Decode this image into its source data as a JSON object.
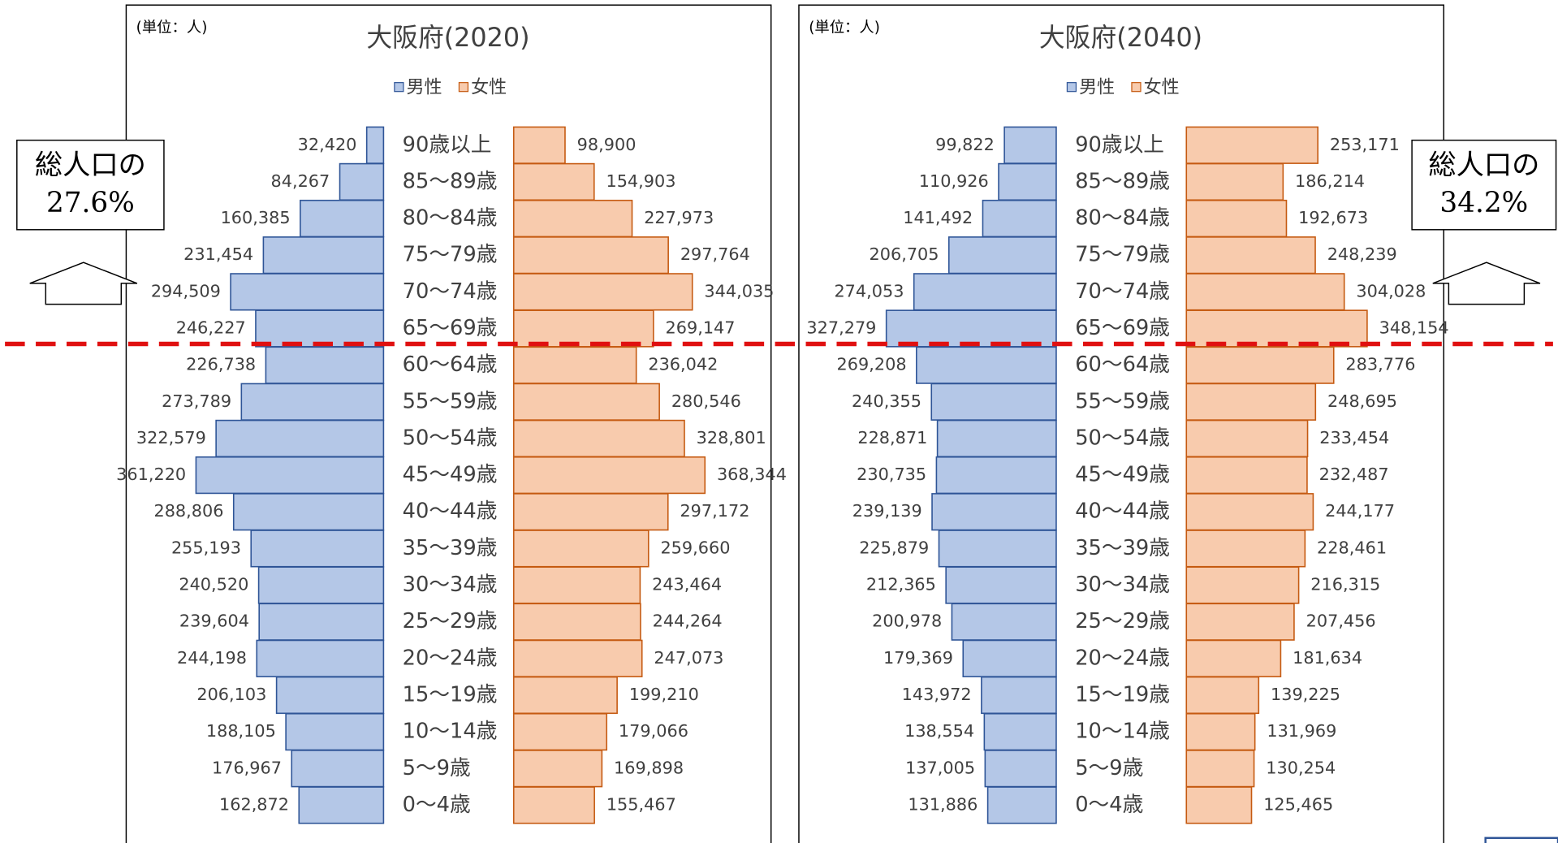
{
  "chart_data": [
    {
      "type": "pyramid",
      "title": "大阪府(2020)",
      "unit": "(単位：人)",
      "annotation": [
        "総人口の",
        "27.6%"
      ],
      "categories": [
        "90歳以上",
        "85～89歳",
        "80～84歳",
        "75～79歳",
        "70～74歳",
        "65～69歳",
        "60～64歳",
        "55～59歳",
        "50～54歳",
        "45～49歳",
        "40～44歳",
        "35～39歳",
        "30～34歳",
        "25～29歳",
        "20～24歳",
        "15～19歳",
        "10～14歳",
        "5～9歳",
        "0～4歳"
      ],
      "xlim": [
        0,
        400000
      ],
      "series": [
        {
          "name": "男性",
          "color": "#b4c7e7",
          "edge": "#2f5597",
          "values": [
            32420,
            84267,
            160385,
            231454,
            294509,
            246227,
            226738,
            273789,
            322579,
            361220,
            288806,
            255193,
            240520,
            239604,
            244198,
            206103,
            188105,
            176967,
            162872
          ],
          "value_labels": [
            "32,420",
            "84,267",
            "160,385",
            "231,454",
            "294,509",
            "246,227",
            "226,738",
            "273,789",
            "322,579",
            "361,220",
            "288,806",
            "255,193",
            "240,520",
            "239,604",
            "244,198",
            "206,103",
            "188,105",
            "176,967",
            "162,872"
          ]
        },
        {
          "name": "女性",
          "color": "#f8cbad",
          "edge": "#c55a11",
          "values": [
            98900,
            154903,
            227973,
            297764,
            344035,
            269147,
            236042,
            280546,
            328801,
            368344,
            297172,
            259660,
            243464,
            244264,
            247073,
            199210,
            179066,
            169898,
            155467
          ],
          "value_labels": [
            "98,900",
            "154,903",
            "227,973",
            "297,764",
            "344,035",
            "269,147",
            "236,042",
            "280,546",
            "328,801",
            "368,344",
            "297,172",
            "259,660",
            "243,464",
            "244,264",
            "247,073",
            "199,210",
            "179,066",
            "169,898",
            "155,467"
          ]
        }
      ]
    },
    {
      "type": "pyramid",
      "title": "大阪府(2040)",
      "unit": "(単位：人)",
      "annotation": [
        "総人口の",
        "34.2%"
      ],
      "categories": [
        "90歳以上",
        "85～89歳",
        "80～84歳",
        "75～79歳",
        "70～74歳",
        "65～69歳",
        "60～64歳",
        "55～59歳",
        "50～54歳",
        "45～49歳",
        "40～44歳",
        "35～39歳",
        "30～34歳",
        "25～29歳",
        "20～24歳",
        "15～19歳",
        "10～14歳",
        "5～9歳",
        "0～4歳"
      ],
      "xlim": [
        0,
        400000
      ],
      "series": [
        {
          "name": "男性",
          "color": "#b4c7e7",
          "edge": "#2f5597",
          "values": [
            99822,
            110926,
            141492,
            206705,
            274053,
            327279,
            269208,
            240355,
            228871,
            230735,
            239139,
            225879,
            212365,
            200978,
            179369,
            143972,
            138554,
            137005,
            131886
          ],
          "value_labels": [
            "99,822",
            "110,926",
            "141,492",
            "206,705",
            "274,053",
            "327,279",
            "269,208",
            "240,355",
            "228,871",
            "230,735",
            "239,139",
            "225,879",
            "212,365",
            "200,978",
            "179,369",
            "143,972",
            "138,554",
            "137,005",
            "131,886"
          ]
        },
        {
          "name": "女性",
          "color": "#f8cbad",
          "edge": "#c55a11",
          "values": [
            253171,
            186214,
            192673,
            248239,
            304028,
            348154,
            283776,
            248695,
            233454,
            232487,
            244177,
            228461,
            216315,
            207456,
            181634,
            139225,
            131969,
            130254,
            125465
          ],
          "value_labels": [
            "253,171",
            "186,214",
            "192,673",
            "248,239",
            "304,028",
            "348,154",
            "283,776",
            "248,695",
            "233,454",
            "232,487",
            "244,177",
            "228,461",
            "216,315",
            "207,456",
            "181,634",
            "139,225",
            "131,969",
            "130,254",
            "125,465"
          ]
        }
      ]
    }
  ]
}
